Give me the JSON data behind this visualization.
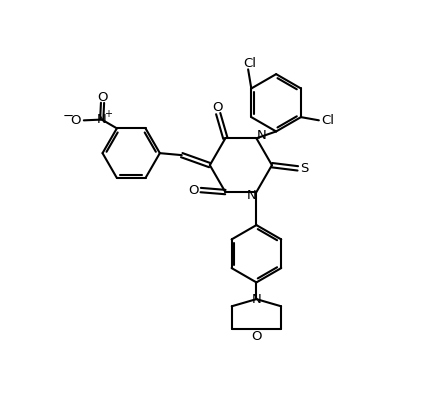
{
  "bg": "#ffffff",
  "lc": "#000000",
  "lw": 1.5,
  "figsize": [
    4.38,
    3.98
  ],
  "dpi": 100,
  "xlim": [
    0,
    10
  ],
  "ylim": [
    0,
    10
  ],
  "ring_r": 0.78,
  "small_r": 0.055,
  "label_fs": 9.5
}
